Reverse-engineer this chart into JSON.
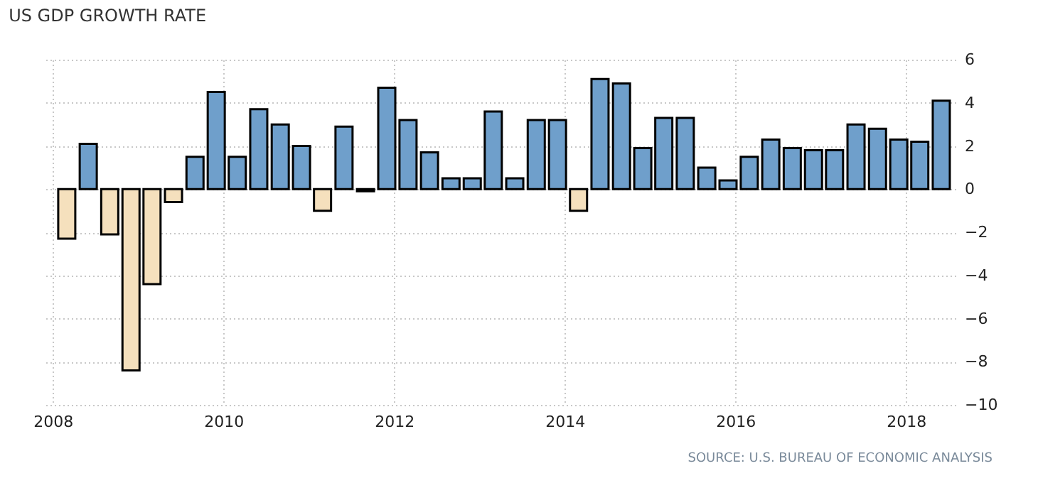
{
  "chart_data": {
    "type": "bar",
    "title": "US GDP GROWTH RATE",
    "x": [
      "2008-03-01",
      "2008-06-01",
      "2008-09-01",
      "2008-12-01",
      "2009-03-01",
      "2009-06-01",
      "2009-09-01",
      "2009-12-01",
      "2010-03-01",
      "2010-06-01",
      "2010-09-01",
      "2010-12-01",
      "2011-03-01",
      "2011-06-01",
      "2011-09-01",
      "2011-12-01",
      "2012-03-01",
      "2012-06-01",
      "2012-09-01",
      "2012-12-01",
      "2013-03-01",
      "2013-06-01",
      "2013-09-01",
      "2013-12-01",
      "2014-03-01",
      "2014-06-01",
      "2014-09-01",
      "2014-12-01",
      "2015-03-01",
      "2015-06-01",
      "2015-09-01",
      "2015-12-01",
      "2016-03-01",
      "2016-06-01",
      "2016-09-01",
      "2016-12-01",
      "2017-03-01",
      "2017-06-01",
      "2017-09-01",
      "2017-12-01",
      "2018-03-01",
      "2018-06-01"
    ],
    "values": [
      -2.3,
      2.1,
      -2.1,
      -8.4,
      -4.4,
      -0.6,
      1.5,
      4.5,
      1.5,
      3.7,
      3.0,
      2.0,
      -1.0,
      2.9,
      -0.1,
      4.7,
      3.2,
      1.7,
      0.5,
      0.5,
      3.6,
      0.5,
      3.2,
      3.2,
      -1.0,
      5.1,
      4.9,
      1.9,
      3.3,
      3.3,
      1.0,
      0.4,
      1.5,
      2.3,
      1.9,
      1.8,
      1.8,
      3.0,
      2.8,
      2.3,
      2.2,
      4.1
    ],
    "colors": [
      "#f5e0bd",
      "#6f9fcb",
      "#f5e0bd",
      "#f5e0bd",
      "#f5e0bd",
      "#f5e0bd",
      "#6f9fcb",
      "#6f9fcb",
      "#6f9fcb",
      "#6f9fcb",
      "#6f9fcb",
      "#6f9fcb",
      "#f5e0bd",
      "#6f9fcb",
      "#f5e0bd",
      "#6f9fcb",
      "#6f9fcb",
      "#6f9fcb",
      "#6f9fcb",
      "#6f9fcb",
      "#6f9fcb",
      "#6f9fcb",
      "#6f9fcb",
      "#6f9fcb",
      "#f5e0bd",
      "#6f9fcb",
      "#6f9fcb",
      "#6f9fcb",
      "#6f9fcb",
      "#6f9fcb",
      "#6f9fcb",
      "#6f9fcb",
      "#6f9fcb",
      "#6f9fcb",
      "#6f9fcb",
      "#6f9fcb",
      "#6f9fcb",
      "#6f9fcb",
      "#6f9fcb",
      "#6f9fcb",
      "#6f9fcb",
      "#6f9fcb"
    ],
    "xlim": [
      "2007-12-01",
      "2018-08-01"
    ],
    "xticks": [
      "2008",
      "2010",
      "2012",
      "2014",
      "2016",
      "2018"
    ],
    "ylim": [
      -10,
      6
    ],
    "yticks": [
      -10,
      -8,
      -6,
      -4,
      -2,
      0,
      2,
      4,
      6
    ],
    "grid": true,
    "annotations": [
      "SOURCE: U.S. BUREAU OF ECONOMIC ANALYSIS"
    ]
  }
}
